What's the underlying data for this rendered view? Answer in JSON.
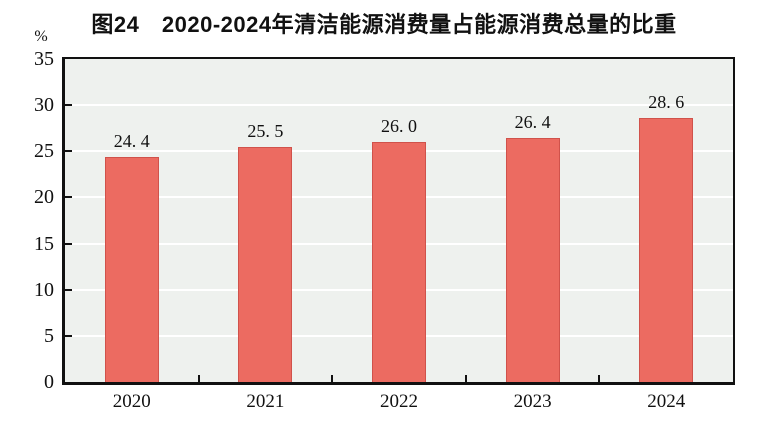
{
  "header": {
    "title": "图24　2020-2024年清洁能源消费量占能源消费总量的比重",
    "unit_label": "%"
  },
  "chart_data": {
    "type": "bar",
    "title": "图24　2020-2024年清洁能源消费量占能源消费总量的比重",
    "categories": [
      "2020",
      "2021",
      "2022",
      "2023",
      "2024"
    ],
    "values": [
      24.4,
      25.5,
      26.0,
      26.4,
      28.6
    ],
    "value_labels": [
      "24. 4",
      "25. 5",
      "26. 0",
      "26. 4",
      "28. 6"
    ],
    "xlabel": "",
    "ylabel": "%",
    "ylim": [
      0,
      35
    ],
    "ytick_step": 5,
    "yticks": [
      0,
      5,
      10,
      15,
      20,
      25,
      30,
      35
    ],
    "grid": true,
    "legend": false,
    "colors": {
      "bar_fill": "#ec6b61",
      "bar_border": "#d0524b",
      "plot_background": "#eef1ee",
      "gridline": "#ffffff",
      "axis": "#111111",
      "text": "#111111",
      "page_background": "#ffffff"
    }
  }
}
